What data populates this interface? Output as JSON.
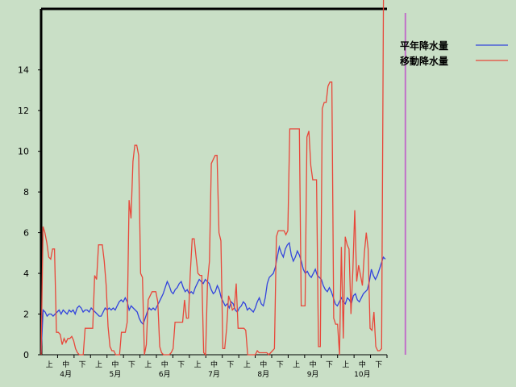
{
  "chart_data": {
    "type": "line",
    "title": "",
    "xlabel": "",
    "ylabel": "",
    "ylim": [
      0,
      17
    ],
    "yticks": [
      0,
      2,
      4,
      6,
      8,
      10,
      12,
      14
    ],
    "legend_position": "top-right",
    "x_axis": {
      "days": 216,
      "decade_labels": [
        "上",
        "中",
        "下",
        "上",
        "中",
        "下",
        "上",
        "中",
        "下",
        "上",
        "中",
        "下",
        "上",
        "中",
        "下",
        "上",
        "中",
        "下",
        "上",
        "中",
        "下"
      ],
      "month_labels": [
        "4月",
        "5月",
        "6月",
        "7月",
        "8月",
        "9月",
        "10月"
      ]
    },
    "colors": {
      "background": "#c9dfc6",
      "series1": "#3344dd",
      "series2": "#e8473a",
      "marker": "#c070c8",
      "frame": "#000000"
    },
    "series": [
      {
        "name": "平年降水量",
        "values": [
          0.1,
          2.2,
          2.1,
          1.9,
          2.0,
          2.0,
          1.9,
          2.0,
          2.1,
          2.2,
          2.0,
          2.2,
          2.1,
          2.0,
          2.2,
          2.1,
          2.2,
          2.0,
          2.3,
          2.4,
          2.3,
          2.1,
          2.2,
          2.2,
          2.1,
          2.3,
          2.2,
          2.1,
          2.0,
          1.9,
          1.9,
          2.1,
          2.3,
          2.2,
          2.3,
          2.2,
          2.3,
          2.2,
          2.4,
          2.6,
          2.7,
          2.6,
          2.8,
          2.6,
          2.2,
          2.4,
          2.3,
          2.2,
          2.1,
          1.8,
          1.6,
          1.5,
          1.8,
          2.1,
          2.3,
          2.2,
          2.3,
          2.2,
          2.4,
          2.6,
          2.8,
          3.0,
          3.3,
          3.6,
          3.4,
          3.1,
          3.0,
          3.2,
          3.3,
          3.5,
          3.6,
          3.3,
          3.1,
          3.2,
          3.0,
          3.1,
          3.0,
          3.3,
          3.5,
          3.7,
          3.6,
          3.5,
          3.7,
          3.6,
          3.5,
          3.2,
          3.0,
          3.1,
          3.4,
          3.2,
          2.8,
          2.6,
          2.4,
          2.5,
          2.3,
          2.6,
          2.5,
          2.2,
          2.1,
          2.3,
          2.4,
          2.6,
          2.5,
          2.2,
          2.3,
          2.2,
          2.1,
          2.3,
          2.6,
          2.8,
          2.5,
          2.4,
          2.8,
          3.5,
          3.8,
          3.9,
          4.0,
          4.3,
          4.8,
          5.3,
          5.0,
          4.8,
          5.2,
          5.4,
          5.5,
          4.9,
          4.6,
          4.8,
          5.1,
          4.9,
          4.6,
          4.2,
          4.0,
          4.1,
          3.9,
          3.8,
          4.0,
          4.2,
          3.9,
          3.8,
          3.7,
          3.4,
          3.2,
          3.1,
          3.3,
          3.1,
          2.8,
          2.5,
          2.4,
          2.6,
          2.8,
          2.6,
          2.5,
          2.8,
          2.7,
          2.5,
          2.9,
          3.0,
          2.7,
          2.6,
          2.8,
          3.0,
          3.1,
          3.2,
          3.6,
          4.2,
          3.9,
          3.7,
          3.9,
          4.2,
          4.5,
          4.8,
          4.7
        ]
      },
      {
        "name": "移動降水量",
        "values": [
          0.0,
          6.3,
          6.0,
          5.5,
          4.8,
          4.7,
          5.2,
          5.2,
          1.1,
          1.1,
          1.0,
          0.5,
          0.8,
          0.6,
          0.8,
          0.8,
          0.9,
          0.7,
          0.3,
          0.1,
          0.0,
          0.0,
          0.0,
          1.3,
          1.3,
          1.3,
          1.3,
          1.3,
          3.9,
          3.7,
          5.4,
          5.4,
          5.4,
          4.6,
          3.4,
          1.4,
          0.4,
          0.2,
          0.2,
          0.0,
          0.0,
          0.0,
          1.1,
          1.1,
          1.1,
          1.6,
          7.6,
          6.7,
          9.5,
          10.3,
          10.3,
          9.8,
          4.0,
          3.8,
          0.0,
          0.5,
          2.7,
          2.9,
          3.1,
          3.1,
          3.1,
          2.6,
          0.4,
          0.1,
          0.0,
          0.0,
          0.0,
          0.0,
          0.1,
          0.3,
          1.6,
          1.6,
          1.6,
          1.6,
          1.6,
          2.7,
          1.8,
          1.8,
          4.0,
          5.7,
          5.7,
          4.8,
          4.0,
          3.9,
          3.9,
          0.1,
          0.0,
          3.6,
          4.6,
          9.4,
          9.6,
          9.8,
          9.8,
          6.0,
          5.6,
          0.3,
          0.3,
          1.3,
          2.9,
          2.6,
          2.2,
          2.3,
          3.5,
          1.3,
          1.3,
          1.3,
          1.3,
          1.2,
          0.0,
          0.0,
          0.0,
          0.0,
          0.0,
          0.2,
          0.1,
          0.1,
          0.1,
          0.1,
          0.1,
          0.0,
          0.1,
          0.2,
          0.3,
          5.8,
          6.1,
          6.1,
          6.1,
          6.1,
          5.9,
          6.1,
          11.1,
          11.1,
          11.1,
          11.1,
          11.1,
          11.1,
          2.4,
          2.4,
          2.4,
          10.7,
          11.0,
          9.3,
          8.6,
          8.6,
          8.6,
          0.4,
          0.4,
          12.1,
          12.4,
          12.4,
          13.2,
          13.4,
          13.4,
          1.8,
          1.5,
          1.5,
          0.0,
          5.3,
          0.8,
          5.8,
          5.4,
          5.2,
          2.0,
          4.2,
          7.1,
          3.6,
          4.4,
          3.9,
          3.4,
          5.0,
          6.0,
          5.2,
          1.3,
          1.2,
          2.1,
          0.4,
          0.2,
          0.2,
          0.3,
          17.5,
          17.5
        ]
      }
    ],
    "marker_line": {
      "day": 182,
      "value": 16.8
    }
  }
}
